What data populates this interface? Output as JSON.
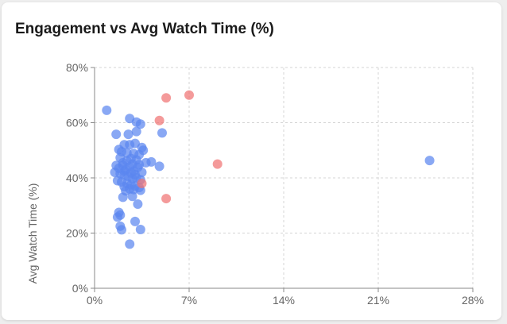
{
  "chart_data": {
    "type": "scatter",
    "title": "Engagement vs Avg Watch Time (%)",
    "xlabel": "",
    "ylabel": "Avg Watch Time (%)",
    "xlim": [
      0,
      28
    ],
    "ylim": [
      0,
      80
    ],
    "xticks": [
      "0%",
      "7%",
      "14%",
      "21%",
      "28%"
    ],
    "yticks": [
      "0%",
      "20%",
      "40%",
      "60%",
      "80%"
    ],
    "xtick_values": [
      0,
      7,
      14,
      21,
      28
    ],
    "ytick_values": [
      0,
      20,
      40,
      60,
      80
    ],
    "grid": true,
    "colors": {
      "blue": "#5b86f0",
      "red": "#f07373"
    },
    "series": [
      {
        "color": "#5b86f0",
        "points": [
          [
            0.9,
            64.5
          ],
          [
            1.6,
            55.8
          ],
          [
            2.6,
            61.5
          ],
          [
            3.1,
            60.2
          ],
          [
            3.4,
            59.5
          ],
          [
            3.1,
            56.8
          ],
          [
            2.5,
            55.8
          ],
          [
            5.0,
            56.3
          ],
          [
            3.0,
            52.5
          ],
          [
            2.2,
            52.0
          ],
          [
            2.6,
            52.0
          ],
          [
            3.5,
            51.0
          ],
          [
            3.6,
            50.0
          ],
          [
            1.8,
            50.3
          ],
          [
            2.0,
            49.5
          ],
          [
            2.4,
            49.0
          ],
          [
            2.9,
            48.8
          ],
          [
            3.3,
            48.4
          ],
          [
            1.9,
            47.3
          ],
          [
            2.7,
            47.0
          ],
          [
            3.8,
            45.5
          ],
          [
            4.8,
            44.2
          ],
          [
            4.2,
            45.8
          ],
          [
            1.6,
            44.5
          ],
          [
            1.8,
            43.5
          ],
          [
            2.1,
            44.5
          ],
          [
            2.3,
            43.0
          ],
          [
            2.6,
            44.0
          ],
          [
            2.9,
            42.5
          ],
          [
            3.2,
            43.8
          ],
          [
            3.5,
            42.0
          ],
          [
            1.5,
            42.0
          ],
          [
            1.9,
            41.5
          ],
          [
            2.2,
            41.0
          ],
          [
            2.5,
            40.5
          ],
          [
            2.8,
            39.8
          ],
          [
            3.1,
            40.0
          ],
          [
            3.4,
            39.3
          ],
          [
            1.7,
            39.0
          ],
          [
            2.0,
            38.5
          ],
          [
            2.4,
            38.0
          ],
          [
            2.7,
            37.5
          ],
          [
            3.0,
            37.0
          ],
          [
            3.3,
            36.5
          ],
          [
            2.2,
            36.8
          ],
          [
            2.6,
            36.0
          ],
          [
            2.3,
            35.3
          ],
          [
            2.9,
            35.8
          ],
          [
            3.4,
            35.5
          ],
          [
            2.1,
            33.0
          ],
          [
            2.8,
            33.3
          ],
          [
            3.2,
            30.5
          ],
          [
            1.8,
            27.5
          ],
          [
            1.9,
            26.5
          ],
          [
            1.7,
            25.8
          ],
          [
            3.0,
            24.2
          ],
          [
            1.9,
            22.5
          ],
          [
            2.0,
            21.2
          ],
          [
            3.4,
            21.3
          ],
          [
            2.6,
            16.0
          ],
          [
            2.1,
            45.5
          ],
          [
            2.4,
            46.2
          ],
          [
            2.8,
            45.0
          ],
          [
            3.1,
            46.5
          ],
          [
            3.3,
            44.8
          ],
          [
            2.2,
            42.5
          ],
          [
            2.7,
            41.8
          ],
          [
            3.0,
            41.2
          ],
          [
            24.8,
            46.3
          ]
        ]
      },
      {
        "color": "#f07373",
        "points": [
          [
            5.3,
            69.0
          ],
          [
            7.0,
            70.0
          ],
          [
            4.8,
            60.8
          ],
          [
            9.1,
            45.0
          ],
          [
            5.3,
            32.5
          ],
          [
            3.5,
            38.0
          ]
        ]
      }
    ]
  }
}
